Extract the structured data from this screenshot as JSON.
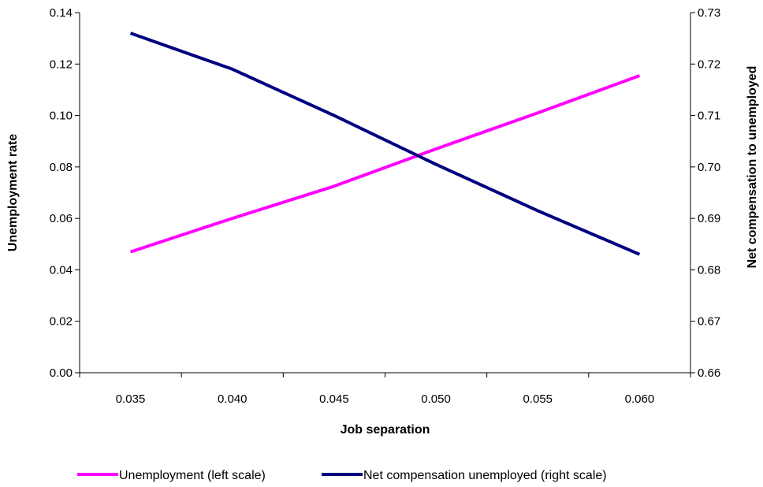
{
  "chart_data": {
    "type": "line",
    "xlabel": "Job separation",
    "ylabel_left": "Unemployment rate",
    "ylabel_right": "Net compensation to unemployed",
    "x_ticks": [
      "0.035",
      "0.040",
      "0.045",
      "0.050",
      "0.055",
      "0.060"
    ],
    "y_left_ticks": [
      "0.00",
      "0.02",
      "0.04",
      "0.06",
      "0.08",
      "0.10",
      "0.12",
      "0.14"
    ],
    "y_right_ticks": [
      "0.66",
      "0.67",
      "0.68",
      "0.69",
      "0.70",
      "0.71",
      "0.72",
      "0.73"
    ],
    "xlim": [
      0.0325,
      0.0625
    ],
    "ylim_left": [
      0,
      0.14
    ],
    "ylim_right": [
      0.66,
      0.73
    ],
    "grid": false,
    "legend_position": "bottom",
    "series": [
      {
        "name": "Unemployment (left scale)",
        "axis": "left",
        "color": "#FF00FF",
        "x": [
          0.035,
          0.04,
          0.045,
          0.05,
          0.055,
          0.06
        ],
        "y": [
          0.047,
          0.06,
          0.0725,
          0.087,
          0.101,
          0.1155
        ]
      },
      {
        "name": "Net compensation unemployed (right scale)",
        "axis": "right",
        "color": "#000080",
        "x": [
          0.035,
          0.04,
          0.045,
          0.05,
          0.055,
          0.06
        ],
        "y": [
          0.726,
          0.719,
          0.71,
          0.7005,
          0.6915,
          0.683
        ]
      }
    ]
  }
}
